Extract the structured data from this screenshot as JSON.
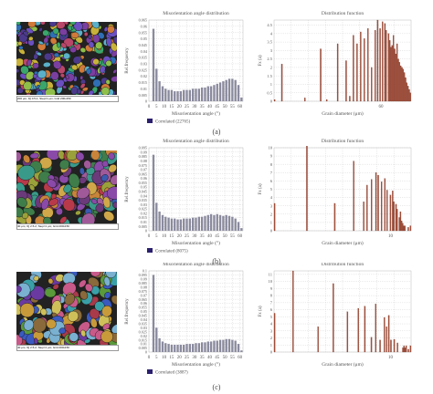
{
  "chart_data": [
    {
      "type": "bar",
      "panel": "(a)",
      "title": "Misorientation angle distribution",
      "xlabel": "Misorientation angle (°)",
      "ylabel": "Rel.frequency",
      "xticks": [
        "0",
        "5",
        "10",
        "15",
        "20",
        "25",
        "30",
        "35",
        "40",
        "45",
        "50",
        "55",
        "60"
      ],
      "yticks": [
        "0",
        "0.005",
        "0.01",
        "0.015",
        "0.02",
        "0.025",
        "0.03",
        "0.035",
        "0.04",
        "0.045",
        "0.05",
        "0.055",
        "0.06",
        "0.065"
      ],
      "ylim": [
        0,
        0.065
      ],
      "legend": "Correlated (22765)",
      "x": [
        3,
        5,
        7,
        9,
        11,
        13,
        15,
        17,
        19,
        21,
        23,
        25,
        27,
        29,
        31,
        33,
        35,
        37,
        39,
        41,
        43,
        45,
        47,
        49,
        51,
        53,
        55,
        57,
        59,
        61
      ],
      "values": [
        0.058,
        0.026,
        0.016,
        0.012,
        0.01,
        0.009,
        0.009,
        0.008,
        0.008,
        0.008,
        0.009,
        0.009,
        0.009,
        0.01,
        0.01,
        0.01,
        0.011,
        0.011,
        0.012,
        0.012,
        0.013,
        0.014,
        0.015,
        0.016,
        0.017,
        0.018,
        0.018,
        0.017,
        0.013,
        0.003
      ]
    },
    {
      "type": "bar",
      "panel": "(a)",
      "title": "Distribution function",
      "xlabel": "Grain diameter (μm)",
      "ylabel": "Fx (a)",
      "xticks": [
        "60"
      ],
      "yticks": [
        "0",
        "0.5",
        "1",
        "1.5",
        "2",
        "2.5",
        "3",
        "3.5",
        "4",
        "4.5"
      ],
      "ylim": [
        0,
        4.8
      ],
      "values": [
        0.1,
        0,
        0,
        0,
        0,
        0,
        2.2,
        0,
        0,
        0,
        0,
        0,
        0,
        0,
        0,
        0,
        0,
        0,
        0,
        0,
        0,
        0,
        0,
        0,
        0,
        0.2,
        0,
        0,
        0,
        0,
        0,
        0,
        0,
        0,
        0,
        0,
        0,
        0,
        3.1,
        0,
        0,
        0,
        0,
        0.1,
        0,
        0,
        0,
        0,
        0,
        0,
        0,
        0,
        3.4,
        0,
        0,
        0,
        0,
        0,
        0,
        2.4,
        0,
        0,
        0.3,
        0,
        0,
        3.9,
        0,
        0,
        3.4,
        0,
        0,
        4.1,
        0,
        0,
        3.7,
        0,
        0,
        4.3,
        0,
        0,
        2.0,
        0,
        0,
        4.2,
        0,
        4.8,
        0,
        4.3,
        0,
        4.7,
        0,
        4.6,
        4.2,
        0,
        4.0,
        3.6,
        3.2,
        3.3,
        3.9,
        3.1,
        2.8,
        3.4,
        2.5,
        2.3,
        2.1,
        2.0,
        1.9,
        1.7,
        1.4,
        1.1,
        0.9,
        0.7,
        0.5
      ]
    },
    {
      "type": "bar",
      "panel": "(b)",
      "title": "Misorientation angle distribution",
      "xlabel": "Misorientation angle (°)",
      "ylabel": "Rel.frequency",
      "xticks": [
        "0",
        "5",
        "10",
        "15",
        "20",
        "25",
        "30",
        "35",
        "40",
        "45",
        "50",
        "55",
        "60"
      ],
      "yticks": [
        "0",
        "0.005",
        "0.01",
        "0.015",
        "0.02",
        "0.025",
        "0.03",
        "0.035",
        "0.04",
        "0.045",
        "0.05",
        "0.055",
        "0.06",
        "0.065",
        "0.07",
        "0.075",
        "0.08",
        "0.085",
        "0.09",
        "0.095"
      ],
      "ylim": [
        0,
        0.095
      ],
      "legend": "Correlated (8075)",
      "x": [
        3,
        5,
        7,
        9,
        11,
        13,
        15,
        17,
        19,
        21,
        23,
        25,
        27,
        29,
        31,
        33,
        35,
        37,
        39,
        41,
        43,
        45,
        47,
        49,
        51,
        53,
        55,
        57,
        59,
        61
      ],
      "values": [
        0.087,
        0.032,
        0.022,
        0.018,
        0.016,
        0.015,
        0.014,
        0.014,
        0.013,
        0.013,
        0.014,
        0.014,
        0.014,
        0.015,
        0.015,
        0.016,
        0.016,
        0.017,
        0.018,
        0.019,
        0.018,
        0.019,
        0.018,
        0.017,
        0.018,
        0.017,
        0.016,
        0.014,
        0.01,
        0.003
      ]
    },
    {
      "type": "bar",
      "panel": "(b)",
      "title": "Distribution function",
      "xlabel": "Grain diameter (μm)",
      "ylabel": "Fx (a)",
      "xticks": [
        "10"
      ],
      "yticks": [
        "0",
        "1",
        "2",
        "3",
        "4",
        "5",
        "6",
        "7",
        "8",
        "9",
        "10"
      ],
      "ylim": [
        0,
        10
      ],
      "values": [
        3.3,
        0,
        0,
        0,
        0,
        0,
        0,
        0,
        0,
        0,
        0,
        0,
        0,
        0,
        0,
        0,
        0,
        0,
        0,
        0,
        0,
        0,
        0,
        0,
        0,
        0,
        0,
        0,
        0,
        10.2,
        0,
        0,
        0,
        0,
        0,
        0,
        0,
        0,
        0,
        0,
        0,
        0,
        0,
        0,
        0,
        0,
        0,
        0,
        0,
        0,
        0,
        0,
        0,
        0,
        3.3,
        0,
        0,
        0,
        0,
        0,
        0,
        0,
        0,
        0,
        0,
        0,
        0,
        0,
        0,
        0,
        0,
        8.4,
        0,
        0,
        0,
        0,
        0,
        0,
        0,
        0,
        3.5,
        0,
        0,
        5.5,
        0,
        0,
        0,
        6.2,
        0,
        0,
        0,
        7.0,
        0,
        6.7,
        0,
        0,
        5.9,
        0,
        0,
        6.3,
        0,
        4.9,
        0,
        0,
        4.3,
        0,
        4.8,
        3.5,
        0,
        3.2,
        2.6,
        0,
        1.6,
        2.3,
        1.2,
        0.9,
        0.6,
        0.6,
        0,
        0,
        0.4,
        0,
        0.6
      ]
    },
    {
      "type": "bar",
      "panel": "(c)",
      "title": "Misorientation angle distribution",
      "xlabel": "Misorientation angle (°)",
      "ylabel": "Rel.frequency",
      "xticks": [
        "0",
        "5",
        "10",
        "15",
        "20",
        "25",
        "30",
        "35",
        "40",
        "45",
        "50",
        "55",
        "60"
      ],
      "yticks": [
        "0",
        "0.005",
        "0.01",
        "0.015",
        "0.02",
        "0.025",
        "0.03",
        "0.035",
        "0.04",
        "0.045",
        "0.05",
        "0.055",
        "0.06",
        "0.065",
        "0.07",
        "0.075",
        "0.08",
        "0.085",
        "0.09",
        "0.095",
        "0.1"
      ],
      "ylim": [
        0,
        0.1
      ],
      "legend": "Correlated (3887)",
      "x": [
        3,
        5,
        7,
        9,
        11,
        13,
        15,
        17,
        19,
        21,
        23,
        25,
        27,
        29,
        31,
        33,
        35,
        37,
        39,
        41,
        43,
        45,
        47,
        49,
        51,
        53,
        55,
        57,
        59,
        61
      ],
      "values": [
        0.095,
        0.03,
        0.017,
        0.013,
        0.011,
        0.01,
        0.009,
        0.009,
        0.009,
        0.009,
        0.009,
        0.01,
        0.01,
        0.01,
        0.011,
        0.011,
        0.012,
        0.012,
        0.013,
        0.013,
        0.014,
        0.014,
        0.015,
        0.015,
        0.016,
        0.016,
        0.015,
        0.014,
        0.01,
        0.002
      ]
    },
    {
      "type": "bar",
      "panel": "(c)",
      "title": "Distribution function",
      "xlabel": "Grain diameter (μm)",
      "ylabel": "Fx (a)",
      "xticks": [
        "10"
      ],
      "yticks": [
        "0",
        "1",
        "2",
        "3",
        "4",
        "5",
        "6",
        "7",
        "8",
        "9",
        "10",
        "11"
      ],
      "ylim": [
        0,
        11.5
      ],
      "values": [
        5.5,
        0,
        0,
        0,
        0,
        0,
        0,
        0,
        0,
        0,
        0,
        0,
        0,
        0,
        0,
        0,
        0,
        11.5,
        0,
        0,
        0,
        0,
        0,
        0,
        0,
        0,
        0,
        0,
        0,
        0,
        0,
        0,
        0,
        0,
        0,
        0,
        0,
        0,
        0,
        0,
        3.6,
        0,
        0,
        0,
        0,
        0,
        0,
        0,
        0,
        0,
        0,
        0,
        0,
        0,
        9.7,
        0,
        0,
        0,
        0,
        0,
        0,
        0,
        0,
        0,
        0,
        0,
        0,
        5.7,
        0,
        0,
        0,
        0,
        0,
        0,
        0,
        0,
        0,
        6.2,
        0,
        0,
        0,
        0,
        0,
        6.5,
        0,
        0,
        0,
        0,
        0,
        2.1,
        0,
        0,
        0,
        6.8,
        0,
        0,
        0,
        1.7,
        0,
        0,
        0,
        4.9,
        0,
        3.6,
        0,
        5.2,
        0,
        1.7,
        0,
        0,
        1.8,
        0,
        0,
        1.3,
        0,
        0,
        0,
        0,
        0.6,
        0.9,
        0.6,
        0.9,
        0,
        0.4,
        0,
        0.9
      ]
    }
  ],
  "captions": [
    "(a)",
    "(b)",
    "(c)"
  ],
  "images": [
    {
      "scale_text": "200 μm; IQ 0.5-1; Step=1 μm; Grid 200x150"
    },
    {
      "scale_text": "40 μm; IQ 2.5-2; Step=1 μm; Grid 200x150"
    },
    {
      "scale_text": "40 μm; IQ 2.5-2; Step=1 μm; Grid 200x150"
    }
  ],
  "colors": {
    "misorientation_bar": "#8a8a9e",
    "legend_swatch": "#2a1f6e",
    "distribution_bar": "#a5503a",
    "grid": "#bbbbbb"
  }
}
